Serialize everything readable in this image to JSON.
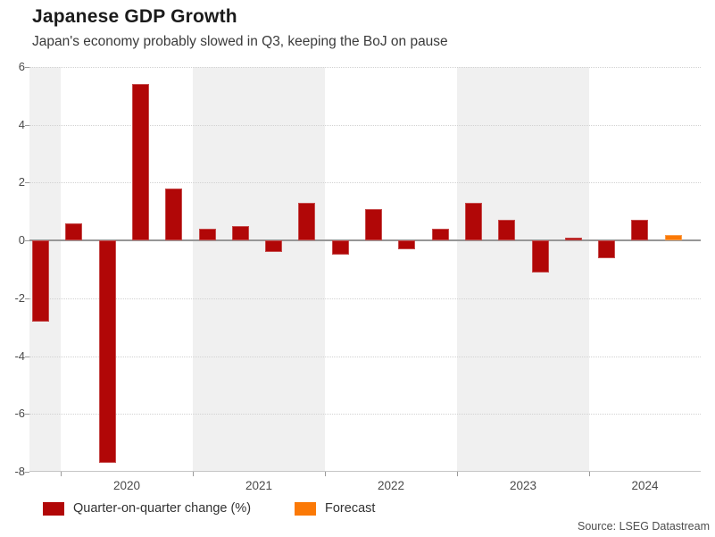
{
  "chart_data": {
    "type": "bar",
    "title": "Japanese GDP Growth",
    "subtitle": "Japan's economy probably slowed in Q3, keeping the BoJ on pause",
    "source": "Source: LSEG Datastream",
    "ylim": [
      -8,
      6
    ],
    "yticks": [
      6,
      4,
      2,
      0,
      -2,
      -4,
      -6,
      -8
    ],
    "x_year_labels": [
      "2020",
      "2021",
      "2022",
      "2023",
      "2024"
    ],
    "shaded_year_labels": [
      "pre-2020",
      "2021",
      "2023"
    ],
    "grid": "dotted-horizontal",
    "legend_position": "bottom-left",
    "legend": [
      {
        "label": "Quarter-on-quarter change (%)",
        "color": "#b10707"
      },
      {
        "label": "Forecast",
        "color": "#fb7906"
      }
    ],
    "colors": {
      "actual": "#b10707",
      "forecast": "#fb7906",
      "year_band": "#f0f0f0",
      "gridline": "#d2d2d2",
      "zero_line": "#979797",
      "axis_line": "#c5c5c5"
    },
    "bars": [
      {
        "quarter": "2019-Q4",
        "value": -2.8,
        "forecast": false
      },
      {
        "quarter": "2020-Q1",
        "value": 0.6,
        "forecast": false
      },
      {
        "quarter": "2020-Q2",
        "value": -7.7,
        "forecast": false
      },
      {
        "quarter": "2020-Q3",
        "value": 5.4,
        "forecast": false
      },
      {
        "quarter": "2020-Q4",
        "value": 1.8,
        "forecast": false
      },
      {
        "quarter": "2021-Q1",
        "value": 0.4,
        "forecast": false
      },
      {
        "quarter": "2021-Q2",
        "value": 0.5,
        "forecast": false
      },
      {
        "quarter": "2021-Q3",
        "value": -0.4,
        "forecast": false
      },
      {
        "quarter": "2021-Q4",
        "value": 1.3,
        "forecast": false
      },
      {
        "quarter": "2022-Q1",
        "value": -0.5,
        "forecast": false
      },
      {
        "quarter": "2022-Q2",
        "value": 1.1,
        "forecast": false
      },
      {
        "quarter": "2022-Q3",
        "value": -0.3,
        "forecast": false
      },
      {
        "quarter": "2022-Q4",
        "value": 0.4,
        "forecast": false
      },
      {
        "quarter": "2023-Q1",
        "value": 1.3,
        "forecast": false
      },
      {
        "quarter": "2023-Q2",
        "value": 0.7,
        "forecast": false
      },
      {
        "quarter": "2023-Q3",
        "value": -1.1,
        "forecast": false
      },
      {
        "quarter": "2023-Q4",
        "value": 0.1,
        "forecast": false
      },
      {
        "quarter": "2024-Q1",
        "value": -0.6,
        "forecast": false
      },
      {
        "quarter": "2024-Q2",
        "value": 0.7,
        "forecast": false
      },
      {
        "quarter": "2024-Q3",
        "value": 0.2,
        "forecast": true
      }
    ]
  }
}
